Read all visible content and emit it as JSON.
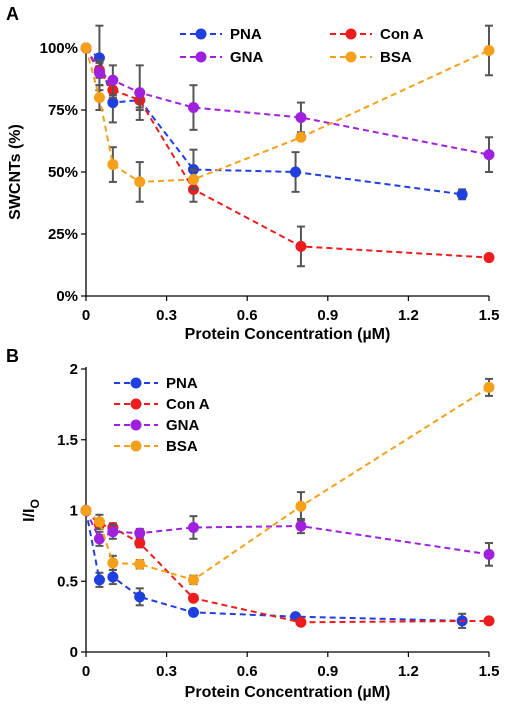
{
  "colors": {
    "PNA": "#1f3fe0",
    "Con A": "#ee1c1c",
    "GNA": "#a020e0",
    "BSA": "#f5a01a",
    "errorbar": "#555555",
    "axis": "#000000"
  },
  "chart_data": [
    {
      "panel_label": "A",
      "type": "line",
      "xlabel": "Protein Concentration (µM)",
      "ylabel": "SWCNTs (%)",
      "xlim": [
        0,
        1.5
      ],
      "ylim": [
        0,
        100
      ],
      "xticks": [
        "0",
        "0.3",
        "0.6",
        "0.9",
        "1.2",
        "1.5"
      ],
      "yticks": [
        "0%",
        "25%",
        "50%",
        "75%",
        "100%"
      ],
      "legend_position": "top, two columns",
      "series": [
        {
          "name": "PNA",
          "color": "#1f3fe0",
          "x": [
            0,
            0.05,
            0.1,
            0.2,
            0.4,
            0.78,
            1.4
          ],
          "y": [
            100,
            96,
            78,
            79,
            51,
            50,
            41
          ],
          "err": [
            0,
            13,
            8,
            4,
            8,
            8,
            2
          ]
        },
        {
          "name": "Con A",
          "color": "#ee1c1c",
          "x": [
            0,
            0.05,
            0.1,
            0.2,
            0.4,
            0.8,
            1.5
          ],
          "y": [
            100,
            91,
            83,
            79,
            43,
            20,
            15.5
          ],
          "err": [
            0,
            3,
            3,
            3,
            5,
            8,
            1
          ]
        },
        {
          "name": "GNA",
          "color": "#a020e0",
          "x": [
            0,
            0.05,
            0.1,
            0.2,
            0.4,
            0.8,
            1.5
          ],
          "y": [
            100,
            90,
            87,
            82,
            76,
            72,
            57
          ],
          "err": [
            0,
            5,
            6,
            11,
            9,
            6,
            7
          ]
        },
        {
          "name": "BSA",
          "color": "#f5a01a",
          "x": [
            0,
            0.05,
            0.1,
            0.2,
            0.4,
            0.8,
            1.5
          ],
          "y": [
            100,
            80,
            53,
            46,
            47,
            64,
            99
          ],
          "err": [
            0,
            5,
            7,
            8,
            4,
            0,
            10
          ]
        }
      ]
    },
    {
      "panel_label": "B",
      "type": "line",
      "xlabel": "Protein Concentration (µM)",
      "ylabel": "I/I",
      "ylabel_subscript": "O",
      "xlim": [
        0,
        1.5
      ],
      "ylim": [
        0,
        2
      ],
      "xticks": [
        "0",
        "0.3",
        "0.6",
        "0.9",
        "1.2",
        "1.5"
      ],
      "yticks": [
        "0",
        "0.5",
        "1",
        "1.5",
        "2"
      ],
      "legend_position": "top-left, one column",
      "series": [
        {
          "name": "PNA",
          "color": "#1f3fe0",
          "x": [
            0,
            0.05,
            0.1,
            0.2,
            0.4,
            0.78,
            1.4
          ],
          "y": [
            1,
            0.51,
            0.53,
            0.39,
            0.28,
            0.25,
            0.22
          ],
          "err": [
            0,
            0.05,
            0.05,
            0.06,
            0.02,
            0.02,
            0.05
          ]
        },
        {
          "name": "Con A",
          "color": "#ee1c1c",
          "x": [
            0,
            0.05,
            0.1,
            0.2,
            0.4,
            0.8,
            1.5
          ],
          "y": [
            1,
            0.9,
            0.88,
            0.77,
            0.38,
            0.21,
            0.22
          ],
          "err": [
            0,
            0.03,
            0.03,
            0.03,
            0.02,
            0.02,
            0.02
          ]
        },
        {
          "name": "GNA",
          "color": "#a020e0",
          "x": [
            0,
            0.05,
            0.1,
            0.2,
            0.4,
            0.8,
            1.5
          ],
          "y": [
            1,
            0.8,
            0.85,
            0.84,
            0.88,
            0.89,
            0.69
          ],
          "err": [
            0,
            0.05,
            0.05,
            0.03,
            0.08,
            0.05,
            0.08
          ]
        },
        {
          "name": "BSA",
          "color": "#f5a01a",
          "x": [
            0,
            0.05,
            0.1,
            0.2,
            0.4,
            0.8,
            1.5
          ],
          "y": [
            1,
            0.92,
            0.63,
            0.62,
            0.51,
            1.03,
            1.87
          ],
          "err": [
            0,
            0.05,
            0.05,
            0.03,
            0.03,
            0.1,
            0.06
          ]
        }
      ]
    }
  ]
}
